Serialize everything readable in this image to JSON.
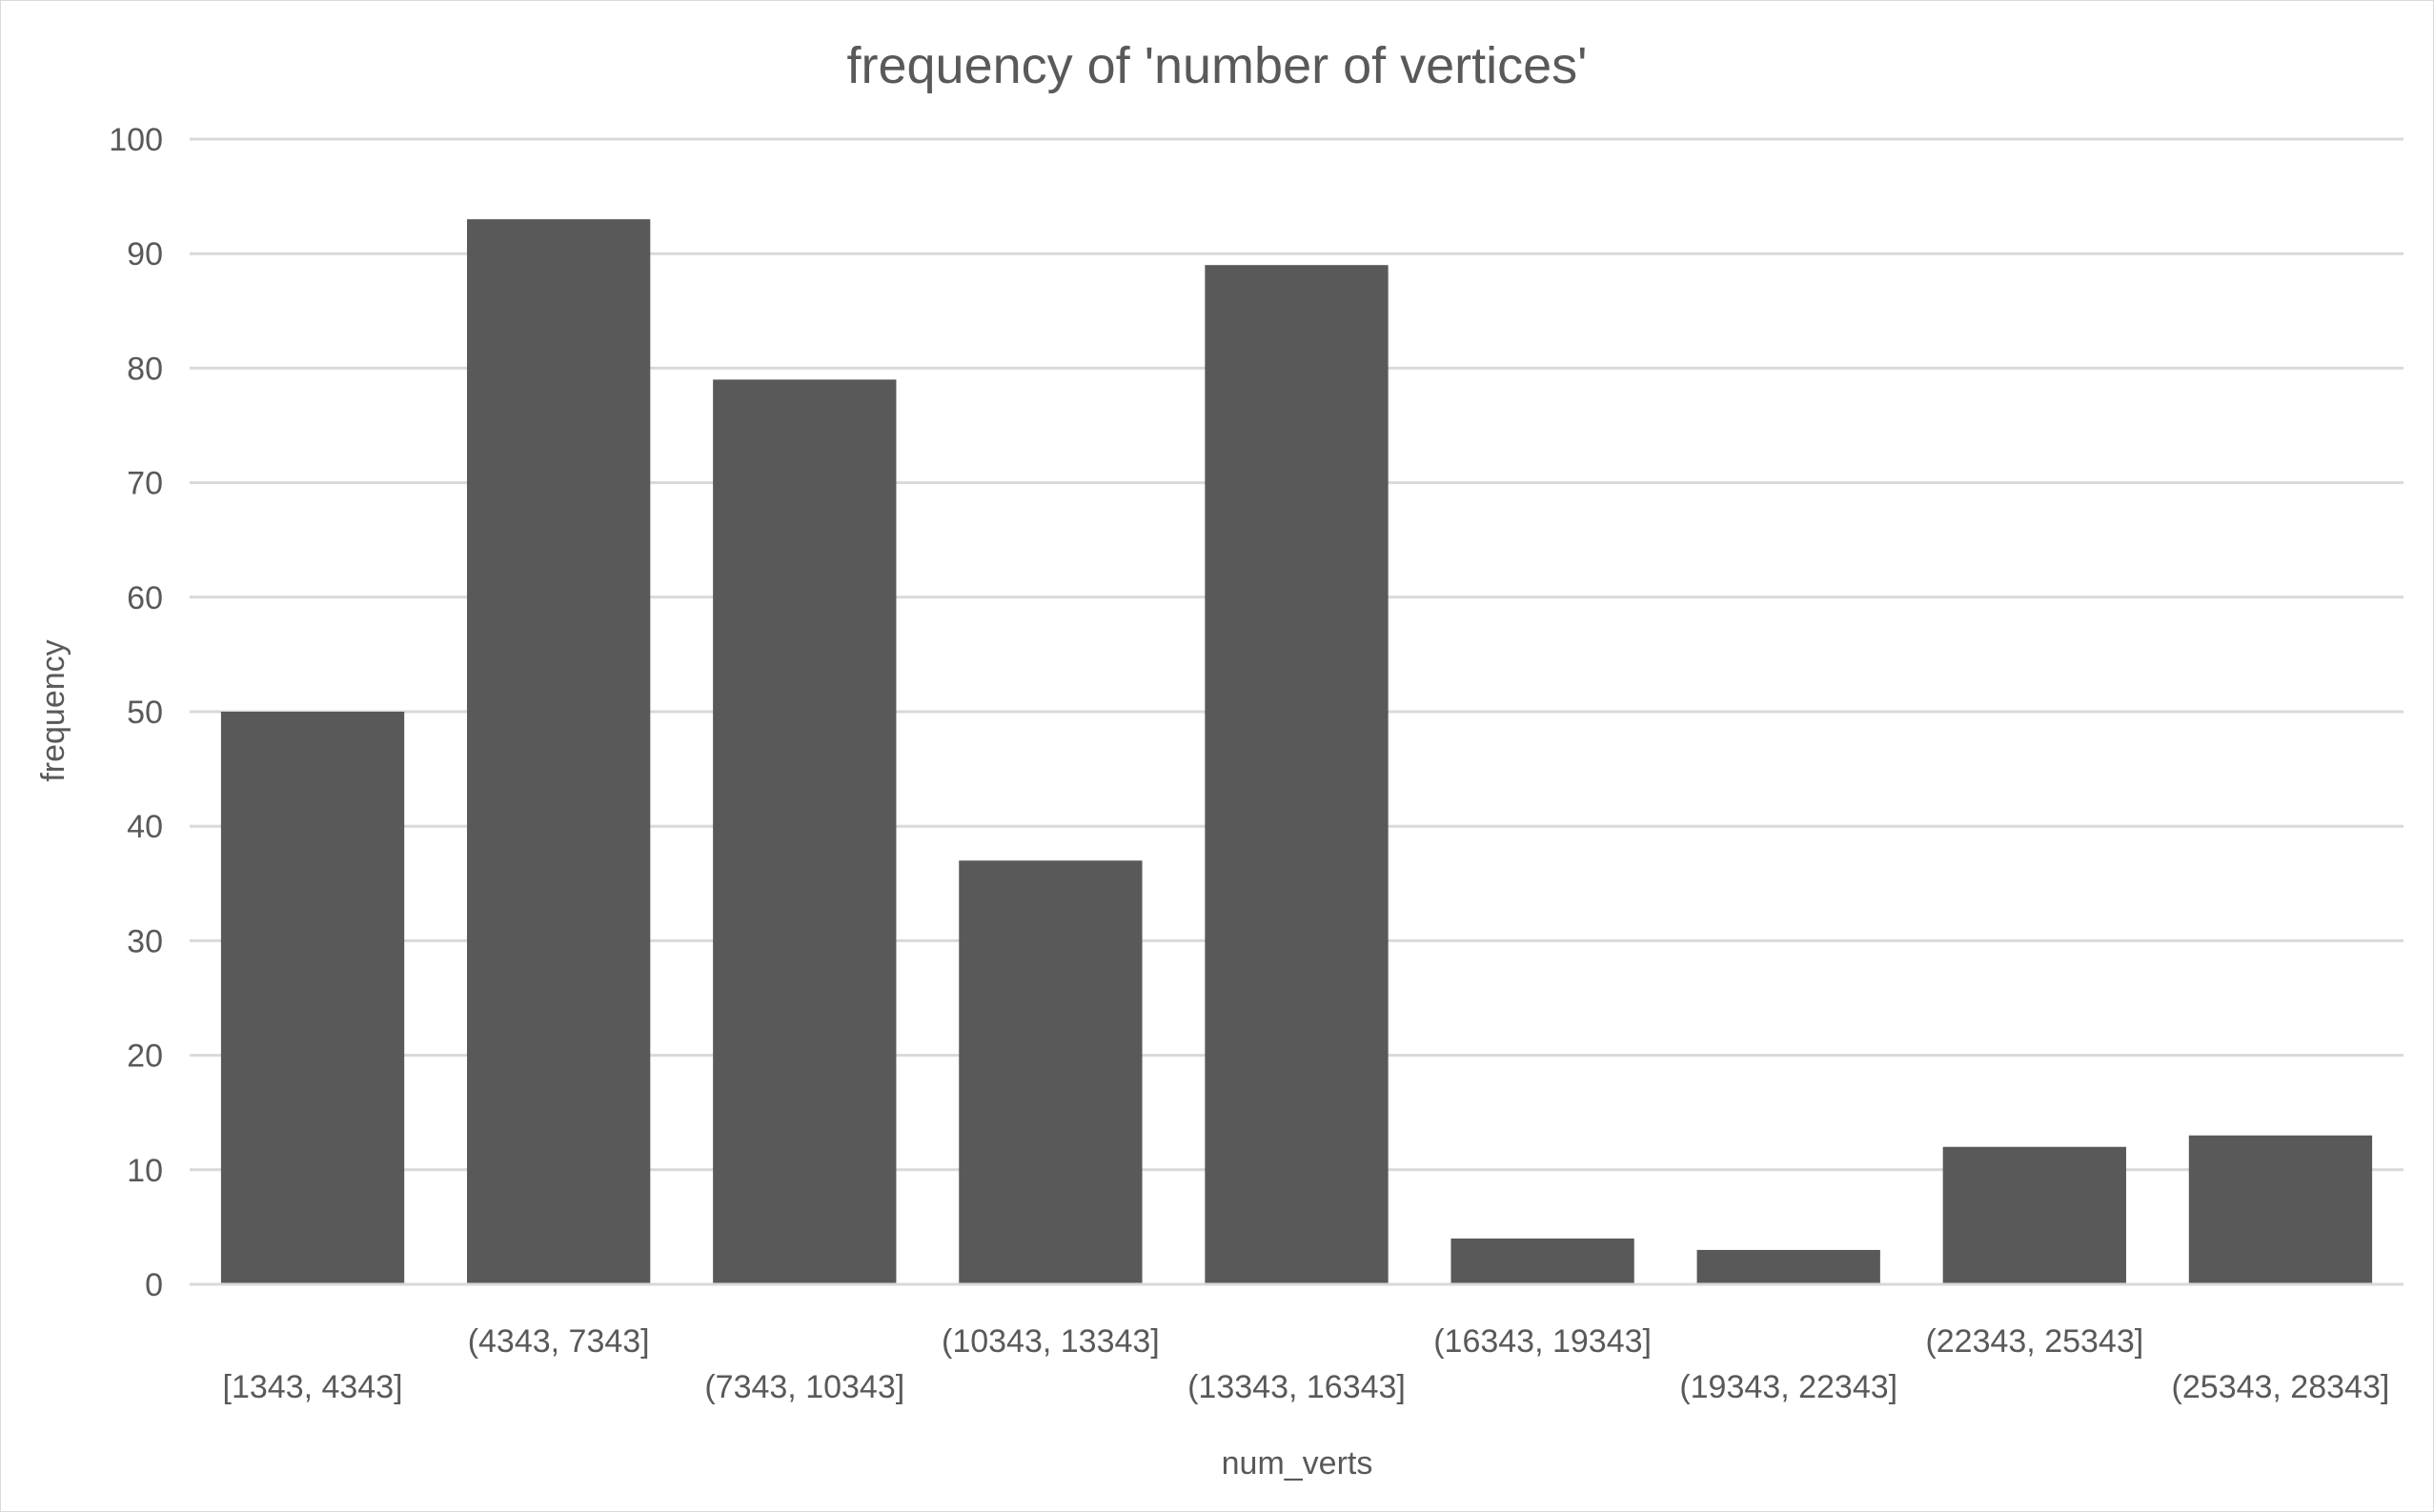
{
  "chart_data": {
    "type": "bar",
    "title": "frequency of 'number of vertices'",
    "xlabel": "num_verts",
    "ylabel": "frequency",
    "ylim": [
      0,
      100
    ],
    "yticks": [
      0,
      10,
      20,
      30,
      40,
      50,
      60,
      70,
      80,
      90,
      100
    ],
    "grid": true,
    "legend": "none",
    "categories": [
      "[1343, 4343]",
      "(4343, 7343]",
      "(7343, 10343]",
      "(10343, 13343]",
      "(13343, 16343]",
      "(16343, 19343]",
      "(19343, 22343]",
      "(22343, 25343]",
      "(25343, 28343]"
    ],
    "values": [
      50,
      93,
      79,
      37,
      89,
      4,
      3,
      12,
      13
    ],
    "bar_color": "#595959",
    "grid_color": "#d9d9d9",
    "text_color": "#595959"
  }
}
